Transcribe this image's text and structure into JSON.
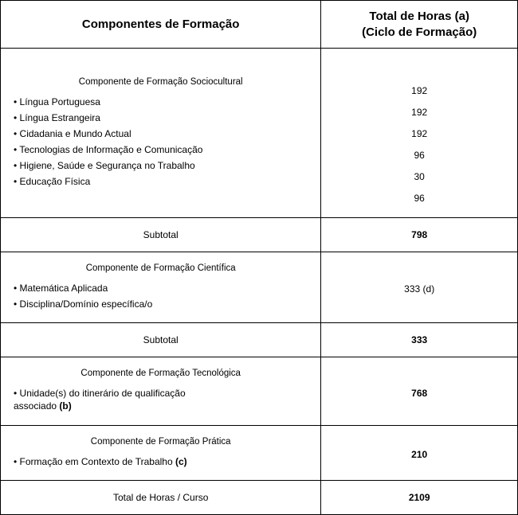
{
  "header": {
    "col1": "Componentes de Formação",
    "col2_line1": "Total de Horas (a)",
    "col2_line2": "(Ciclo de Formação)"
  },
  "section1": {
    "title": "Componente de Formação Sociocultural",
    "items": [
      "• Língua Portuguesa",
      "• Língua Estrangeira",
      "• Cidadania e Mundo Actual",
      "• Tecnologias de Informação e Comunicação",
      "• Higiene, Saúde e Segurança no Trabalho",
      "• Educação Física"
    ],
    "hours": [
      "192",
      "192",
      "192",
      "96",
      "30",
      "96"
    ],
    "subtotal_label": "Subtotal",
    "subtotal_value": "798"
  },
  "section2": {
    "title": "Componente de Formação Científica",
    "items": [
      "• Matemática Aplicada",
      "• Disciplina/Domínio específica/o"
    ],
    "hours_combined": "333 (d)",
    "subtotal_label": "Subtotal",
    "subtotal_value": "333"
  },
  "section3": {
    "title": "Componente de Formação Tecnológica",
    "item_line1": "• Unidade(s) do itinerário de qualificação",
    "item_line2_label": "associado ",
    "item_line2_bold": "(b)",
    "hours": "768"
  },
  "section4": {
    "title": "Componente de Formação Prática",
    "item_label": "• Formação em Contexto de Trabalho ",
    "item_bold": "(c)",
    "hours": "210"
  },
  "total": {
    "label": "Total de Horas / Curso",
    "value": "2109"
  }
}
